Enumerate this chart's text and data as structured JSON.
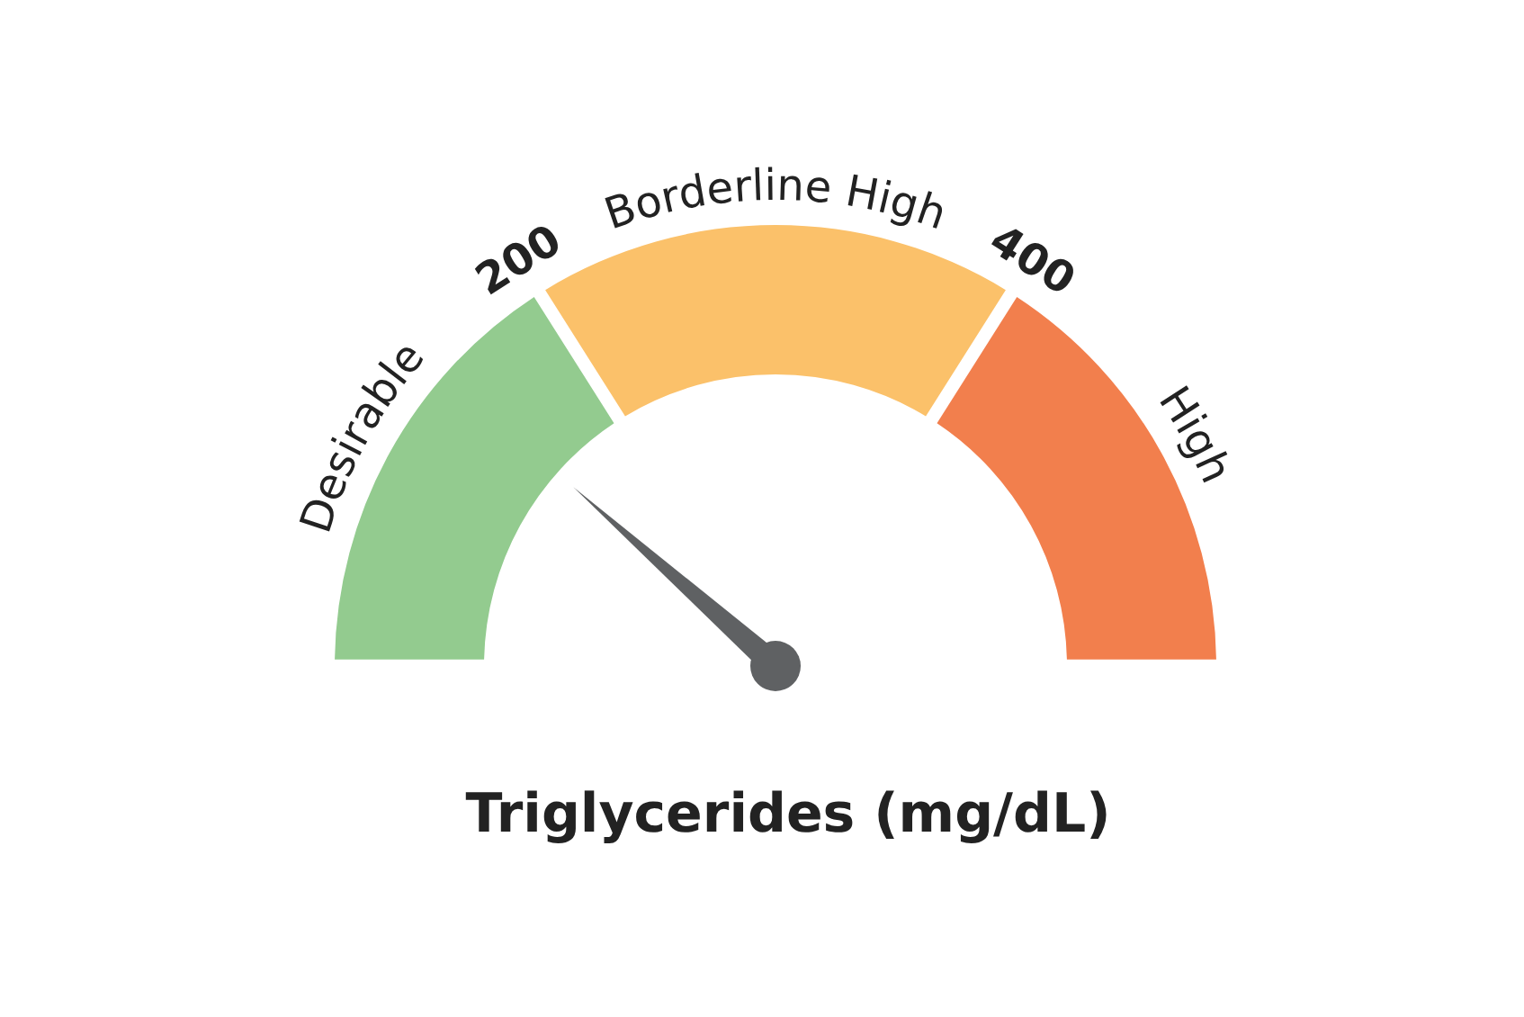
{
  "chart_data": {
    "type": "donut",
    "title": "Triglycerides (mg/dL)",
    "categories": [
      "Desirable",
      "Borderline High",
      "High"
    ],
    "values": [
      32,
      36,
      32
    ],
    "colors": [
      "#93cb8f",
      "#fbc16a",
      "#f27f4d"
    ],
    "needle": "Desirable",
    "annotations": [
      "200",
      "400"
    ]
  }
}
